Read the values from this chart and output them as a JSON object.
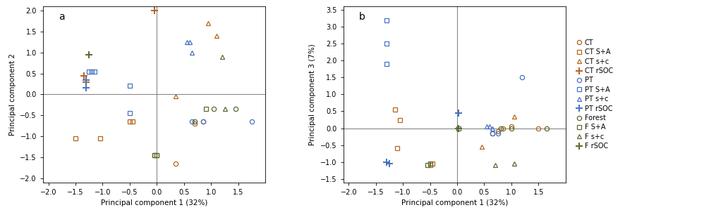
{
  "plot_a": {
    "xlabel": "Principal component 1 (32%)",
    "ylabel": "Principal component 2",
    "xlim": [
      -2.1,
      2.0
    ],
    "ylim": [
      -2.1,
      2.1
    ],
    "xticks": [
      -2,
      -1.5,
      -1,
      -0.5,
      0,
      0.5,
      1,
      1.5
    ],
    "yticks": [
      -2,
      -1.5,
      -1,
      -0.5,
      0,
      0.5,
      1,
      1.5,
      2
    ],
    "label": "a",
    "series": {
      "CT": {
        "marker": "o",
        "color": "#b5651d",
        "filled": false,
        "points": [
          [
            0.35,
            -1.65
          ],
          [
            0.7,
            -0.7
          ],
          [
            0.85,
            -0.65
          ]
        ]
      },
      "CT S+A": {
        "marker": "s",
        "color": "#b5651d",
        "filled": false,
        "points": [
          [
            -0.5,
            -0.65
          ],
          [
            -0.45,
            -0.65
          ],
          [
            -1.05,
            -1.05
          ],
          [
            -1.5,
            -1.05
          ],
          [
            -0.05,
            -1.45
          ],
          [
            0.0,
            -1.45
          ]
        ]
      },
      "CT s+c": {
        "marker": "^",
        "color": "#b5651d",
        "filled": false,
        "points": [
          [
            0.35,
            -0.05
          ],
          [
            0.95,
            1.7
          ],
          [
            1.1,
            1.4
          ]
        ]
      },
      "CT rSOC": {
        "marker": "+",
        "color": "#b5651d",
        "filled": true,
        "points": [
          [
            -1.35,
            0.45
          ],
          [
            -1.3,
            0.3
          ],
          [
            -0.05,
            2.0
          ]
        ]
      },
      "PT": {
        "marker": "o",
        "color": "#4472c4",
        "filled": false,
        "points": [
          [
            0.65,
            -0.65
          ],
          [
            0.85,
            -0.65
          ],
          [
            1.75,
            -0.65
          ]
        ]
      },
      "PT S+A": {
        "marker": "s",
        "color": "#4472c4",
        "filled": false,
        "points": [
          [
            -1.2,
            0.55
          ],
          [
            -1.25,
            0.55
          ],
          [
            -1.15,
            0.55
          ],
          [
            -0.5,
            0.2
          ],
          [
            -0.5,
            -0.45
          ]
        ]
      },
      "PT s+c": {
        "marker": "^",
        "color": "#4472c4",
        "filled": false,
        "points": [
          [
            0.55,
            1.25
          ],
          [
            0.6,
            1.25
          ],
          [
            0.65,
            1.0
          ]
        ]
      },
      "PT rSOC": {
        "marker": "+",
        "color": "#4472c4",
        "filled": true,
        "points": [
          [
            -1.3,
            0.15
          ],
          [
            -1.3,
            0.35
          ]
        ]
      },
      "Forest": {
        "marker": "o",
        "color": "#556b2f",
        "filled": false,
        "points": [
          [
            0.7,
            -0.65
          ],
          [
            1.05,
            -0.35
          ],
          [
            1.45,
            -0.35
          ]
        ]
      },
      "F S+A": {
        "marker": "s",
        "color": "#556b2f",
        "filled": false,
        "points": [
          [
            -0.05,
            -1.45
          ],
          [
            0.0,
            -1.45
          ],
          [
            0.9,
            -0.35
          ]
        ]
      },
      "F s+c": {
        "marker": "^",
        "color": "#556b2f",
        "filled": false,
        "points": [
          [
            1.25,
            -0.35
          ],
          [
            1.2,
            0.9
          ]
        ]
      },
      "F rSOC": {
        "marker": "+",
        "color": "#556b2f",
        "filled": true,
        "points": [
          [
            -1.25,
            0.95
          ]
        ]
      }
    }
  },
  "plot_b": {
    "xlabel": "Principal component 1 (32%)",
    "ylabel": "Principal component 3 (7%)",
    "xlim": [
      -2.1,
      2.0
    ],
    "ylim": [
      -1.6,
      3.6
    ],
    "xticks": [
      -2,
      -1.5,
      -1,
      -0.5,
      0,
      0.5,
      1,
      1.5
    ],
    "yticks": [
      -1.5,
      -1,
      -0.5,
      0,
      0.5,
      1,
      1.5,
      2,
      2.5,
      3,
      3.5
    ],
    "label": "b",
    "series": {
      "CT": {
        "marker": "o",
        "color": "#b5651d",
        "filled": false,
        "points": [
          [
            0.65,
            -0.15
          ],
          [
            0.75,
            -0.1
          ],
          [
            0.85,
            0.0
          ],
          [
            1.0,
            0.05
          ],
          [
            1.5,
            0.0
          ]
        ]
      },
      "CT S+A": {
        "marker": "s",
        "color": "#b5651d",
        "filled": false,
        "points": [
          [
            -1.15,
            0.55
          ],
          [
            -1.05,
            0.25
          ],
          [
            -1.1,
            -0.6
          ],
          [
            -0.45,
            -1.05
          ],
          [
            -0.5,
            -1.1
          ]
        ]
      },
      "CT s+c": {
        "marker": "^",
        "color": "#b5651d",
        "filled": false,
        "points": [
          [
            1.05,
            0.35
          ],
          [
            0.45,
            -0.55
          ]
        ]
      },
      "CT rSOC": {
        "marker": "+",
        "color": "#b5651d",
        "filled": true,
        "points": [
          [
            0.02,
            0.45
          ]
        ]
      },
      "PT": {
        "marker": "o",
        "color": "#4472c4",
        "filled": false,
        "points": [
          [
            1.2,
            1.5
          ],
          [
            0.75,
            -0.15
          ],
          [
            0.65,
            -0.15
          ]
        ]
      },
      "PT S+A": {
        "marker": "s",
        "color": "#4472c4",
        "filled": false,
        "points": [
          [
            -1.3,
            3.2
          ],
          [
            -1.3,
            2.5
          ],
          [
            -1.3,
            1.9
          ]
        ]
      },
      "PT s+c": {
        "marker": "^",
        "color": "#4472c4",
        "filled": false,
        "points": [
          [
            0.55,
            0.05
          ],
          [
            0.6,
            0.05
          ],
          [
            0.65,
            0.0
          ]
        ]
      },
      "PT rSOC": {
        "marker": "+",
        "color": "#4472c4",
        "filled": true,
        "points": [
          [
            -1.25,
            -1.05
          ],
          [
            -1.3,
            -1.0
          ],
          [
            0.02,
            0.45
          ]
        ]
      },
      "Forest": {
        "marker": "o",
        "color": "#556b2f",
        "filled": false,
        "points": [
          [
            0.8,
            0.0
          ],
          [
            1.0,
            0.0
          ],
          [
            1.65,
            0.0
          ]
        ]
      },
      "F S+A": {
        "marker": "s",
        "color": "#556b2f",
        "filled": false,
        "points": [
          [
            -0.5,
            -1.05
          ],
          [
            -0.55,
            -1.1
          ],
          [
            0.02,
            0.0
          ]
        ]
      },
      "F s+c": {
        "marker": "^",
        "color": "#556b2f",
        "filled": false,
        "points": [
          [
            0.7,
            -1.1
          ],
          [
            1.05,
            -1.05
          ]
        ]
      },
      "F rSOC": {
        "marker": "+",
        "color": "#556b2f",
        "filled": true,
        "points": [
          [
            0.02,
            0.0
          ]
        ]
      }
    }
  },
  "legend_order": [
    "CT",
    "CT S+A",
    "CT s+c",
    "CT rSOC",
    "PT",
    "PT S+A",
    "PT s+c",
    "PT rSOC",
    "Forest",
    "F S+A",
    "F s+c",
    "F rSOC"
  ],
  "marker_map": {
    "CT": "o",
    "CT S+A": "s",
    "CT s+c": "^",
    "CT rSOC": "+",
    "PT": "o",
    "PT S+A": "s",
    "PT s+c": "^",
    "PT rSOC": "+",
    "Forest": "o",
    "F S+A": "s",
    "F s+c": "^",
    "F rSOC": "+"
  },
  "color_map": {
    "CT": "#b5651d",
    "CT S+A": "#b5651d",
    "CT s+c": "#b5651d",
    "CT rSOC": "#b5651d",
    "PT": "#4472c4",
    "PT S+A": "#4472c4",
    "PT s+c": "#4472c4",
    "PT rSOC": "#4472c4",
    "Forest": "#556b2f",
    "F S+A": "#556b2f",
    "F s+c": "#556b2f",
    "F rSOC": "#556b2f"
  },
  "markersize": 4.5,
  "markeredgewidth": 0.9,
  "plus_markersize": 7,
  "plus_markeredgewidth": 1.4,
  "tick_labelsize": 7,
  "axis_labelsize": 7.5,
  "label_fontsize": 10,
  "legend_fontsize": 7,
  "axline_color": "#888888",
  "axline_lw": 0.8
}
